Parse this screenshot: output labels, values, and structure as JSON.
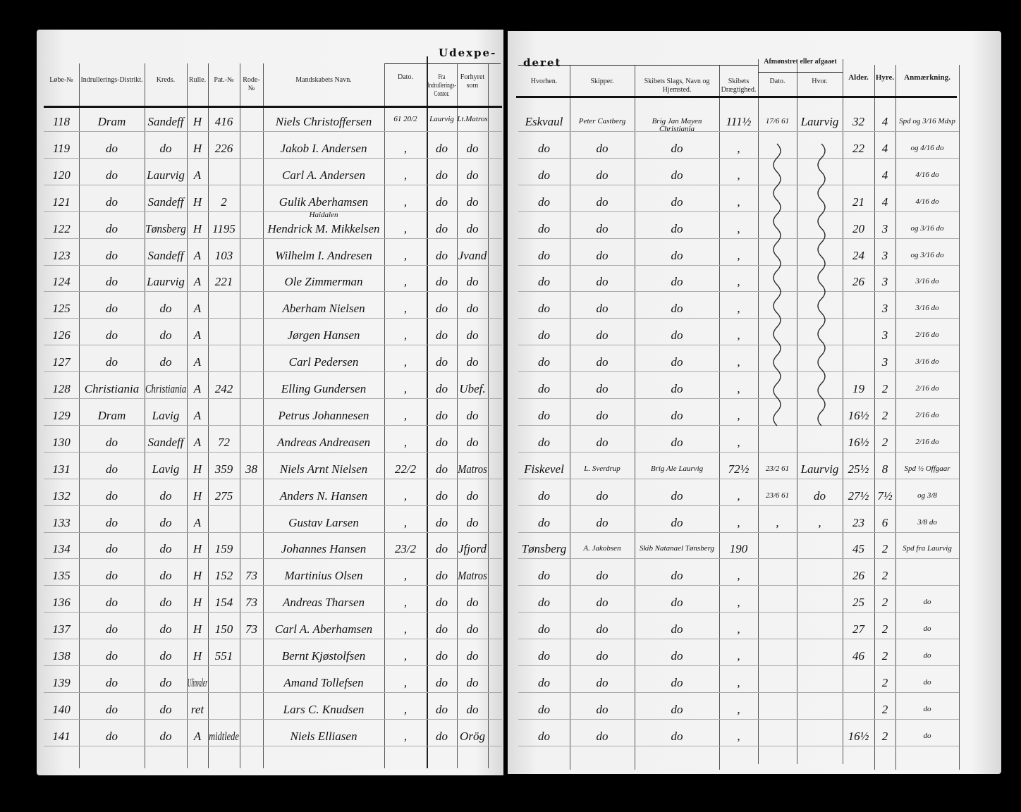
{
  "left_page": {
    "title": "Udexpe-",
    "headers": [
      "Løbe-№",
      "Indrullerings-Distrikt.",
      "Kreds.",
      "Rulle.",
      "Pat.-№",
      "Rode-№",
      "Mandskabets Navn.",
      "Dato.",
      "Fra Indrullerings-Contor.",
      "Forhyret som"
    ],
    "rows": [
      [
        "118",
        "Dram",
        "Sandeff",
        "H",
        "416",
        "",
        "Niels Christoffersen",
        "61 20/2",
        "Laurvig",
        "Lt.Matros"
      ],
      [
        "119",
        "do",
        "do",
        "H",
        "226",
        "",
        "Jakob I. Andersen",
        ",",
        "do",
        "do"
      ],
      [
        "120",
        "do",
        "Laurvig",
        "A",
        "",
        "",
        "Carl A. Andersen",
        ",",
        "do",
        "do"
      ],
      [
        "121",
        "do",
        "Sandeff",
        "H",
        "2",
        "",
        "Gulik Aberhamsen",
        ",",
        "do",
        "do"
      ],
      [
        "122",
        "do",
        "Tønsberg",
        "H",
        "1195",
        "",
        "Hendrick M. Mikkelsen",
        ",",
        "do",
        "do"
      ],
      [
        "123",
        "do",
        "Sandeff",
        "A",
        "103",
        "",
        "Wilhelm I. Andresen",
        ",",
        "do",
        "Jvand"
      ],
      [
        "124",
        "do",
        "Laurvig",
        "A",
        "221",
        "",
        "Ole Zimmerman",
        ",",
        "do",
        "do"
      ],
      [
        "125",
        "do",
        "do",
        "A",
        "",
        "",
        "Aberham Nielsen",
        ",",
        "do",
        "do"
      ],
      [
        "126",
        "do",
        "do",
        "A",
        "",
        "",
        "Jørgen Hansen",
        ",",
        "do",
        "do"
      ],
      [
        "127",
        "do",
        "do",
        "A",
        "",
        "",
        "Carl Pedersen",
        ",",
        "do",
        "do"
      ],
      [
        "128",
        "Christiania",
        "Christiania",
        "A",
        "242",
        "",
        "Elling Gundersen",
        ",",
        "do",
        "Ubef."
      ],
      [
        "129",
        "Dram",
        "Lavig",
        "A",
        "",
        "",
        "Petrus Johannesen",
        ",",
        "do",
        "do"
      ],
      [
        "130",
        "do",
        "Sandeff",
        "A",
        "72",
        "",
        "Andreas Andreasen",
        ",",
        "do",
        "do"
      ],
      [
        "131",
        "do",
        "Lavig",
        "H",
        "359",
        "38",
        "Niels Arnt Nielsen",
        "22/2",
        "do",
        "Matros"
      ],
      [
        "132",
        "do",
        "do",
        "H",
        "275",
        "",
        "Anders N. Hansen",
        ",",
        "do",
        "do"
      ],
      [
        "133",
        "do",
        "do",
        "A",
        "",
        "",
        "Gustav Larsen",
        ",",
        "do",
        "do"
      ],
      [
        "134",
        "do",
        "do",
        "H",
        "159",
        "",
        "Johannes Hansen",
        "23/2",
        "do",
        "Jfjord"
      ],
      [
        "135",
        "do",
        "do",
        "H",
        "152",
        "73",
        "Martinius Olsen",
        ",",
        "do",
        "Matros"
      ],
      [
        "136",
        "do",
        "do",
        "H",
        "154",
        "73",
        "Andreas Tharsen",
        ",",
        "do",
        "do"
      ],
      [
        "137",
        "do",
        "do",
        "H",
        "150",
        "73",
        "Carl A. Aberhamsen",
        ",",
        "do",
        "do"
      ],
      [
        "138",
        "do",
        "do",
        "H",
        "551",
        "",
        "Bernt Kjøstolfsen",
        ",",
        "do",
        "do"
      ],
      [
        "139",
        "do",
        "do",
        "Ulinvaler",
        "",
        "",
        "Amand Tollefsen",
        ",",
        "do",
        "do"
      ],
      [
        "140",
        "do",
        "do",
        "ret",
        "",
        "",
        "Lars C. Knudsen",
        ",",
        "do",
        "do"
      ],
      [
        "141",
        "do",
        "do",
        "A",
        "midtlede",
        "",
        "Niels Elliasen",
        ",",
        "do",
        "Orög"
      ]
    ],
    "name_notes": [
      {
        "row": 4,
        "text": "Haidalen"
      }
    ]
  },
  "right_page": {
    "title": "deret",
    "group_header": "Afmønstret eller afgaaet",
    "headers": [
      "Hvorhen.",
      "Skipper.",
      "Skibets Slags, Navn og Hjemsted.",
      "Skibets Drægtighed.",
      "Dato.",
      "Hvor.",
      "Alder.",
      "Hyre.",
      "Anmærkning."
    ],
    "rows": [
      [
        "Eskvaul",
        "Peter Castberg",
        "Brig Jan Mayen Christiania",
        "111½",
        "17/6 61",
        "Laurvig",
        "32",
        "4",
        "Spd og 3/16 Mdsp"
      ],
      [
        "do",
        "do",
        "do",
        ",",
        "",
        "",
        "22",
        "4",
        "og 4/16 do"
      ],
      [
        "do",
        "do",
        "do",
        ",",
        "",
        "",
        "",
        "4",
        "4/16 do"
      ],
      [
        "do",
        "do",
        "do",
        ",",
        "",
        "",
        "21",
        "4",
        "4/16 do"
      ],
      [
        "do",
        "do",
        "do",
        ",",
        "",
        "",
        "20",
        "3",
        "og 3/16 do"
      ],
      [
        "do",
        "do",
        "do",
        ",",
        "",
        "",
        "24",
        "3",
        "og 3/16 do"
      ],
      [
        "do",
        "do",
        "do",
        ",",
        "",
        "",
        "26",
        "3",
        "3/16 do"
      ],
      [
        "do",
        "do",
        "do",
        ",",
        "",
        "",
        "",
        "3",
        "3/16 do"
      ],
      [
        "do",
        "do",
        "do",
        ",",
        "",
        "",
        "",
        "3",
        "2/16 do"
      ],
      [
        "do",
        "do",
        "do",
        ",",
        "",
        "",
        "",
        "3",
        "3/16 do"
      ],
      [
        "do",
        "do",
        "do",
        ",",
        "",
        "",
        "19",
        "2",
        "2/16 do"
      ],
      [
        "do",
        "do",
        "do",
        ",",
        "",
        "",
        "16½",
        "2",
        "2/16 do"
      ],
      [
        "do",
        "do",
        "do",
        ",",
        "",
        "",
        "16½",
        "2",
        "2/16 do"
      ],
      [
        "Fiskevel",
        "L. Sverdrup",
        "Brig Ale Laurvig",
        "72½",
        "23/2 61",
        "Laurvig",
        "25½",
        "8",
        "Spd ½ Offgaar"
      ],
      [
        "do",
        "do",
        "do",
        ",",
        "23/6 61",
        "do",
        "27½",
        "7½",
        "og 3/8"
      ],
      [
        "do",
        "do",
        "do",
        ",",
        ",",
        ",",
        "23",
        "6",
        "3/8 do"
      ],
      [
        "Tønsberg",
        "A. Jakobsen",
        "Skib Natanael Tønsberg",
        "190",
        "",
        "",
        "45",
        "2",
        "Spd fra Laurvig"
      ],
      [
        "do",
        "do",
        "do",
        ",",
        "",
        "",
        "26",
        "2",
        ""
      ],
      [
        "do",
        "do",
        "do",
        ",",
        "",
        "",
        "25",
        "2",
        "do"
      ],
      [
        "do",
        "do",
        "do",
        ",",
        "",
        "",
        "27",
        "2",
        "do"
      ],
      [
        "do",
        "do",
        "do",
        ",",
        "",
        "",
        "46",
        "2",
        "do"
      ],
      [
        "do",
        "do",
        "do",
        ",",
        "",
        "",
        "",
        "2",
        "do"
      ],
      [
        "do",
        "do",
        "do",
        ",",
        "",
        "",
        "",
        "2",
        "do"
      ],
      [
        "do",
        "do",
        "do",
        ",",
        "",
        "",
        "16½",
        "2",
        "do"
      ]
    ]
  }
}
